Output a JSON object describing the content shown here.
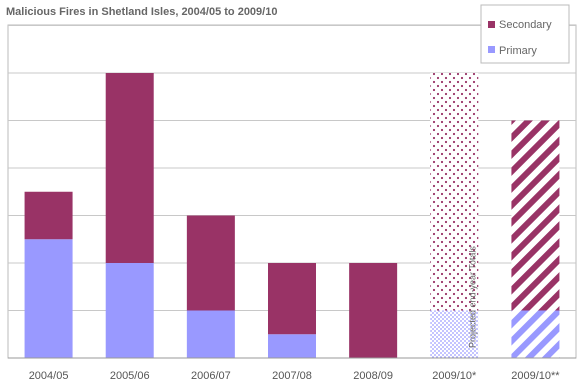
{
  "chart_data": {
    "type": "bar",
    "stacked": true,
    "title": "Malicious Fires in Shetland Isles, 2004/05 to 2009/10",
    "xlabel": "",
    "ylabel": "",
    "categories": [
      "2004/05",
      "2005/06",
      "2006/07",
      "2007/08",
      "2008/09",
      "2009/10*",
      "2009/10**"
    ],
    "ylim": [
      0,
      7
    ],
    "grid": true,
    "legend_position": "top-right",
    "series": [
      {
        "name": "Primary",
        "color": "#9999ff",
        "values": [
          2.5,
          2,
          1,
          0.5,
          0,
          1,
          1
        ]
      },
      {
        "name": "Secondary",
        "color": "#993366",
        "values": [
          1,
          4,
          2,
          1.5,
          2,
          5,
          4
        ]
      }
    ],
    "bar_patterns": [
      "solid",
      "solid",
      "solid",
      "solid",
      "solid",
      "dotted",
      "striped"
    ],
    "annotations": [
      {
        "text": "Projected end-year Totals",
        "category": "2009/10*"
      }
    ]
  }
}
